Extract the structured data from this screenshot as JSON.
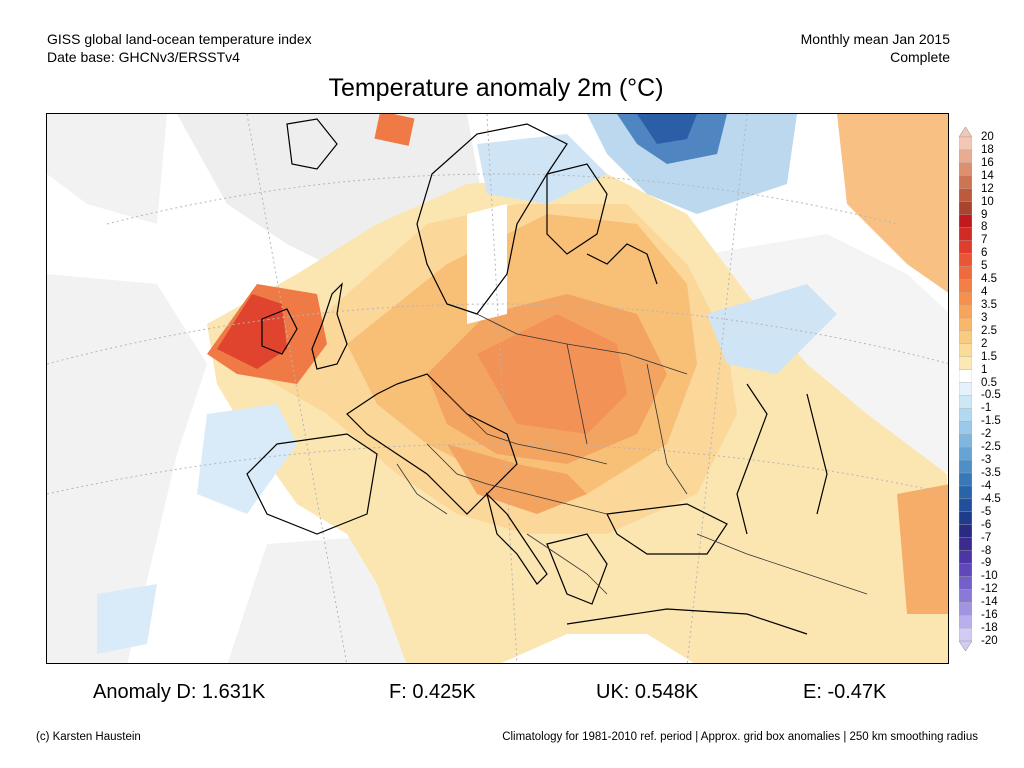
{
  "header": {
    "line1_left": "GISS global land-ocean temperature index",
    "line2_left": "Date base: GHCNv3/ERSSTv4",
    "line1_right": "Monthly mean Jan 2015",
    "line2_right": "Complete"
  },
  "title": "Temperature anomaly 2m (°C)",
  "colorbar": {
    "labels": [
      "20",
      "18",
      "16",
      "14",
      "12",
      "10",
      "9",
      "8",
      "7",
      "6",
      "5",
      "4.5",
      "4",
      "3.5",
      "3",
      "2.5",
      "2",
      "1.5",
      "1",
      "0.5",
      "-0.5",
      "-1",
      "-1.5",
      "-2",
      "-2.5",
      "-3",
      "-3.5",
      "-4",
      "-4.5",
      "-5",
      "-6",
      "-7",
      "-8",
      "-9",
      "-10",
      "-12",
      "-14",
      "-16",
      "-18",
      "-20"
    ],
    "colors": [
      "#f3c7b4",
      "#e9ab92",
      "#dc9070",
      "#cc7555",
      "#bb5a3f",
      "#a8432e",
      "#c01a1f",
      "#d12b25",
      "#e03d2c",
      "#ea5535",
      "#ef6a3c",
      "#f27f45",
      "#f4914f",
      "#f5a55c",
      "#f7b86b",
      "#f9cb80",
      "#fbdb98",
      "#fce8b4",
      "#ffffff",
      "#e5f2fb",
      "#cde7f7",
      "#b3d9f1",
      "#9ac9e9",
      "#80b7df",
      "#66a4d4",
      "#4d8fc7",
      "#3878b9",
      "#2963aa",
      "#214f9b",
      "#1f3c8c",
      "#2a2a82",
      "#3b2b8f",
      "#4d36a3",
      "#6048b8",
      "#7460c8",
      "#8a79d6",
      "#a294e2",
      "#b9afec",
      "#d1cbf5"
    ]
  },
  "stats": {
    "anomaly_d": "Anomaly D: 1.631K",
    "f": "F: 0.425K",
    "uk": "UK: 0.548K",
    "e": "E: -0.47K"
  },
  "footer": {
    "credit": "(c) Karsten Haustein",
    "note": "Climatology for 1981-2010 ref. period | Approx. grid box anomalies | 250 km smoothing radius"
  }
}
